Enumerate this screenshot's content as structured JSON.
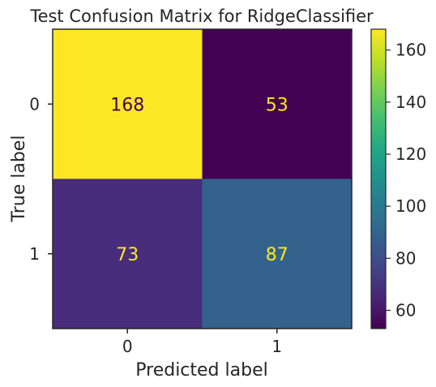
{
  "chart_data": {
    "type": "heatmap",
    "title": "Test Confusion Matrix for RidgeClassifier",
    "xlabel": "Predicted label",
    "ylabel": "True label",
    "x_categories": [
      "0",
      "1"
    ],
    "y_categories": [
      "0",
      "1"
    ],
    "values": [
      [
        168,
        53
      ],
      [
        73,
        87
      ]
    ],
    "colormap": "viridis",
    "colorbar": {
      "range": [
        53,
        168
      ],
      "ticks": [
        60,
        80,
        100,
        120,
        140,
        160
      ],
      "tick_labels": [
        "60",
        "80",
        "100",
        "120",
        "140",
        "160"
      ]
    },
    "grid": false,
    "cell_colors": [
      [
        "#fde725",
        "#440154"
      ],
      [
        "#472d7b",
        "#33638d"
      ]
    ],
    "cell_text_colors": [
      [
        "#440154",
        "#fde725"
      ],
      [
        "#fde725",
        "#fde725"
      ]
    ]
  }
}
